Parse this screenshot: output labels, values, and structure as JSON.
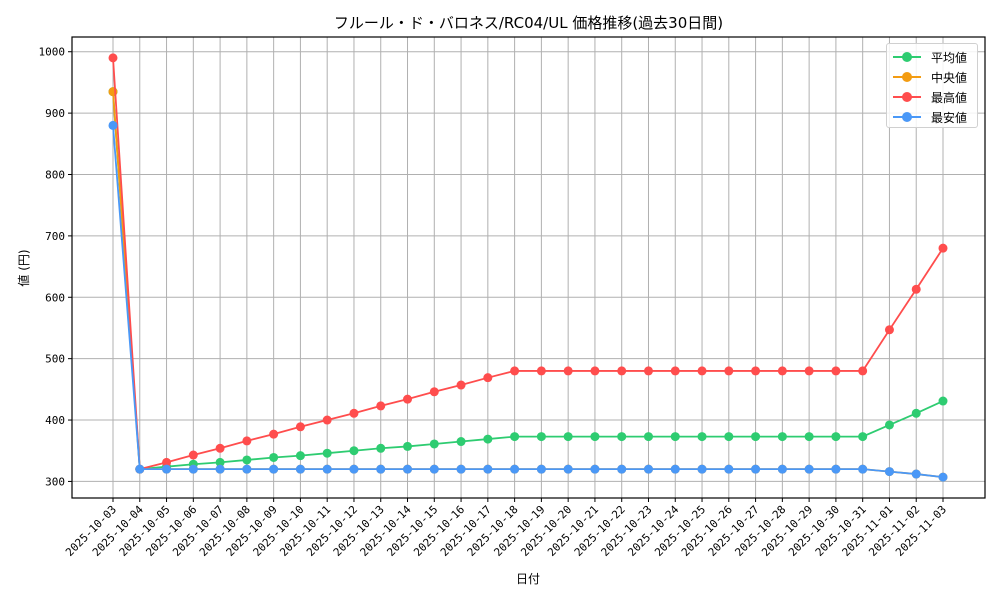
{
  "chart_data": {
    "type": "line",
    "title": "フルール・ド・バロネス/RC04/UL 価格推移(過去30日間)",
    "xlabel": "日付",
    "ylabel": "値 (円)",
    "ylim": [
      273,
      1024
    ],
    "yticks": [
      300,
      400,
      500,
      600,
      700,
      800,
      900,
      1000
    ],
    "grid": true,
    "legend_position": "upper right",
    "x": [
      "2025-10-03",
      "2025-10-04",
      "2025-10-05",
      "2025-10-06",
      "2025-10-07",
      "2025-10-08",
      "2025-10-09",
      "2025-10-10",
      "2025-10-11",
      "2025-10-12",
      "2025-10-13",
      "2025-10-14",
      "2025-10-15",
      "2025-10-16",
      "2025-10-17",
      "2025-10-18",
      "2025-10-19",
      "2025-10-20",
      "2025-10-21",
      "2025-10-22",
      "2025-10-23",
      "2025-10-24",
      "2025-10-25",
      "2025-10-26",
      "2025-10-27",
      "2025-10-28",
      "2025-10-29",
      "2025-10-30",
      "2025-10-31",
      "2025-11-01",
      "2025-11-02",
      "2025-11-03"
    ],
    "series": [
      {
        "name": "平均値",
        "color": "#2ecc71",
        "values": [
          935,
          320,
          324,
          328,
          331,
          335,
          339,
          342,
          346,
          350,
          354,
          357,
          361,
          365,
          369,
          373,
          373,
          373,
          373,
          373,
          373,
          373,
          373,
          373,
          373,
          373,
          373,
          373,
          373,
          392,
          411,
          431
        ]
      },
      {
        "name": "中央値",
        "color": "#f39c12",
        "values": [
          935,
          320,
          320,
          320,
          320,
          320,
          320,
          320,
          320,
          320,
          320,
          320,
          320,
          320,
          320,
          320,
          320,
          320,
          320,
          320,
          320,
          320,
          320,
          320,
          320,
          320,
          320,
          320,
          320,
          316,
          312,
          307
        ]
      },
      {
        "name": "最高値",
        "color": "#ff4d4d",
        "values": [
          990,
          320,
          331,
          343,
          354,
          366,
          377,
          389,
          400,
          411,
          423,
          434,
          446,
          457,
          469,
          480,
          480,
          480,
          480,
          480,
          480,
          480,
          480,
          480,
          480,
          480,
          480,
          480,
          480,
          547,
          613,
          680
        ]
      },
      {
        "name": "最安値",
        "color": "#4a98f7",
        "values": [
          880,
          320,
          320,
          320,
          320,
          320,
          320,
          320,
          320,
          320,
          320,
          320,
          320,
          320,
          320,
          320,
          320,
          320,
          320,
          320,
          320,
          320,
          320,
          320,
          320,
          320,
          320,
          320,
          320,
          316,
          312,
          307
        ]
      }
    ]
  },
  "legend": {
    "items": [
      {
        "label": "平均値",
        "color": "#2ecc71"
      },
      {
        "label": "中央値",
        "color": "#f39c12"
      },
      {
        "label": "最高値",
        "color": "#ff4d4d"
      },
      {
        "label": "最安値",
        "color": "#4a98f7"
      }
    ]
  }
}
